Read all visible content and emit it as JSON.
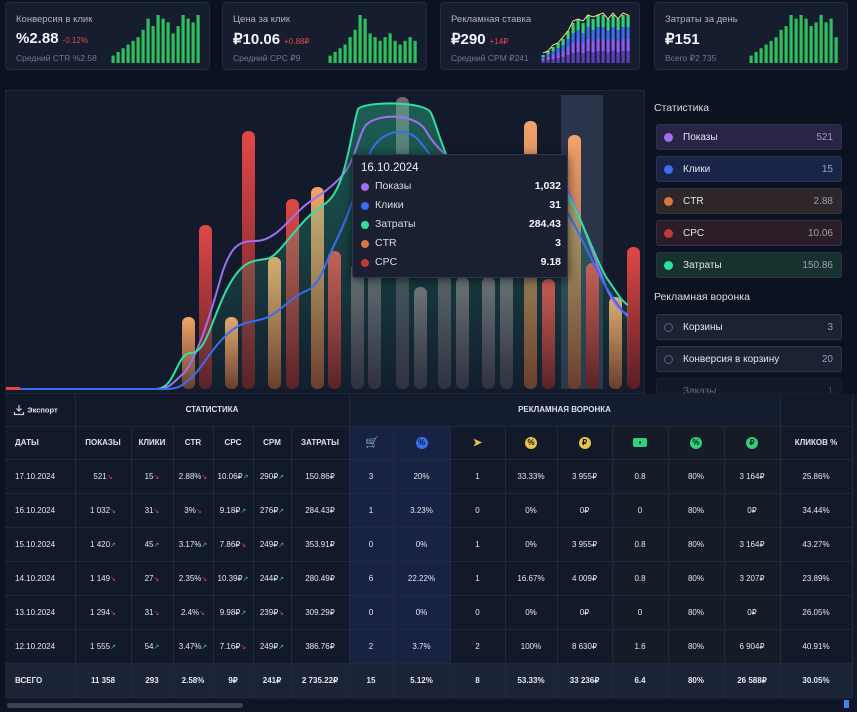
{
  "kpis": [
    {
      "title": "Конверсия в клик",
      "value": "%2.88",
      "delta": "-0.12%",
      "delta_color": "#e04a4a",
      "sub": "Средний CTR %2.58",
      "bars": [
        2,
        3,
        4,
        5,
        6,
        7,
        9,
        12,
        10,
        13,
        12,
        11,
        8,
        10,
        13,
        12,
        11,
        13
      ],
      "mixed": false
    },
    {
      "title": "Цена за клик",
      "value": "₽10.06",
      "delta": "+0.88₽",
      "delta_color": "#e04a4a",
      "sub": "Средний CPC ₽9",
      "bars": [
        2,
        3,
        4,
        5,
        7,
        9,
        13,
        12,
        8,
        7,
        6,
        7,
        8,
        6,
        5,
        6,
        7,
        6
      ],
      "mixed": false
    },
    {
      "title": "Рекламная ставка",
      "value": "₽290",
      "delta": "+14₽",
      "delta_color": "#e04a4a",
      "sub": "Средний CPM ₽241",
      "bars": [
        2,
        3,
        4,
        5,
        6,
        8,
        10,
        11,
        10,
        12,
        11,
        12,
        12,
        11,
        12,
        11,
        12,
        12
      ],
      "mixed": true
    },
    {
      "title": "Затраты за день",
      "value": "₽151",
      "delta": "",
      "delta_color": "#e04a4a",
      "sub": "Всего ₽2 735",
      "bars": [
        2,
        3,
        4,
        5,
        6,
        7,
        9,
        10,
        13,
        12,
        13,
        12,
        10,
        11,
        13,
        11,
        12,
        7
      ],
      "mixed": false
    }
  ],
  "tooltip": {
    "date": "16.10.2024",
    "rows": [
      {
        "label": "Показы",
        "value": "1,032",
        "color": "#9f6ff0"
      },
      {
        "label": "Клики",
        "value": "31",
        "color": "#3a6df0"
      },
      {
        "label": "Затраты",
        "value": "284.43",
        "color": "#2fe0a0"
      },
      {
        "label": "CTR",
        "value": "3",
        "color": "#d97740"
      },
      {
        "label": "CPC",
        "value": "9.18",
        "color": "#c03a3a"
      }
    ]
  },
  "side": {
    "stats_title": "Статистика",
    "legend": [
      {
        "label": "Показы",
        "value": "521",
        "color": "#9f6ff0",
        "bg": "#2a2446"
      },
      {
        "label": "Клики",
        "value": "15",
        "color": "#3a6df0",
        "bg": "#1a2448"
      },
      {
        "label": "CTR",
        "value": "2.88",
        "color": "#d97740",
        "bg": "#2e2628"
      },
      {
        "label": "CPC",
        "value": "10.06",
        "color": "#c03a3a",
        "bg": "#2c1e26"
      },
      {
        "label": "Затраты",
        "value": "150.86",
        "color": "#2fe0a0",
        "bg": "#17322e"
      }
    ],
    "funnel_title": "Рекламная воронка",
    "funnel": [
      {
        "label": "Корзины",
        "value": "3"
      },
      {
        "label": "Конверсия в корзину",
        "value": "20"
      },
      {
        "label": "Заказы",
        "value": "1"
      }
    ]
  },
  "table": {
    "export_label": "Экспорт",
    "group_stats": "СТАТИСТИКА",
    "group_funnel": "РЕКЛАМНАЯ ВОРОНКА",
    "headers": [
      "ДАТЫ",
      "ПОКАЗЫ",
      "КЛИКИ",
      "CTR",
      "CPC",
      "CPM",
      "ЗАТРАТЫ"
    ],
    "funnel_icons": [
      {
        "name": "cart-icon",
        "glyph": "🛒",
        "color": "#3a6df0"
      },
      {
        "name": "percent-icon",
        "glyph": "%",
        "color": "#3a6df0"
      },
      {
        "name": "send-icon",
        "glyph": "➤",
        "color": "#e6c34a"
      },
      {
        "name": "percent-icon",
        "glyph": "%",
        "color": "#e6c34a"
      },
      {
        "name": "ruble-icon",
        "glyph": "₽",
        "color": "#e6c34a"
      },
      {
        "name": "cash-icon",
        "glyph": "▬",
        "color": "#2fd27a"
      },
      {
        "name": "percent-icon",
        "glyph": "%",
        "color": "#2fd27a"
      },
      {
        "name": "ruble-icon",
        "glyph": "₽",
        "color": "#2fd27a"
      }
    ],
    "last_header": "КЛИКОВ %",
    "rows": [
      {
        "date": "17.10.2024",
        "shows": "521",
        "shows_t": "dn",
        "clicks": "15",
        "clicks_t": "dn",
        "ctr": "2.88%",
        "ctr_t": "dn",
        "cpc": "10.06₽",
        "cpc_t": "up",
        "cpm": "290₽",
        "cpm_t": "up",
        "cost": "150.86₽",
        "f": [
          "3",
          "20%",
          "1",
          "33.33%",
          "3 955₽",
          "0.8",
          "80%",
          "3 164₽"
        ],
        "last": "25.86%"
      },
      {
        "date": "16.10.2024",
        "shows": "1 032",
        "shows_t": "dn",
        "clicks": "31",
        "clicks_t": "dn",
        "ctr": "3%",
        "ctr_t": "dn",
        "cpc": "9.18₽",
        "cpc_t": "up",
        "cpm": "276₽",
        "cpm_t": "up",
        "cost": "284.43₽",
        "f": [
          "1",
          "3.23%",
          "0",
          "0%",
          "0₽",
          "0",
          "80%",
          "0₽"
        ],
        "last": "34.44%"
      },
      {
        "date": "15.10.2024",
        "shows": "1 420",
        "shows_t": "up",
        "clicks": "45",
        "clicks_t": "up",
        "ctr": "3.17%",
        "ctr_t": "up",
        "cpc": "7.86₽",
        "cpc_t": "dn",
        "cpm": "249₽",
        "cpm_t": "up",
        "cost": "353.91₽",
        "f": [
          "0",
          "0%",
          "1",
          "0%",
          "3 955₽",
          "0.8",
          "80%",
          "3 164₽"
        ],
        "last": "43.27%"
      },
      {
        "date": "14.10.2024",
        "shows": "1 149",
        "shows_t": "dn",
        "clicks": "27",
        "clicks_t": "dn",
        "ctr": "2.35%",
        "ctr_t": "dn",
        "cpc": "10.39₽",
        "cpc_t": "up",
        "cpm": "244₽",
        "cpm_t": "up",
        "cost": "280.49₽",
        "f": [
          "6",
          "22.22%",
          "1",
          "16.67%",
          "4 009₽",
          "0.8",
          "80%",
          "3 207₽"
        ],
        "last": "23.89%"
      },
      {
        "date": "13.10.2024",
        "shows": "1 294",
        "shows_t": "dn",
        "clicks": "31",
        "clicks_t": "dn",
        "ctr": "2.4%",
        "ctr_t": "dn",
        "cpc": "9.98₽",
        "cpc_t": "up",
        "cpm": "239₽",
        "cpm_t": "dn",
        "cost": "309.29₽",
        "f": [
          "0",
          "0%",
          "0",
          "0%",
          "0₽",
          "0",
          "80%",
          "0₽"
        ],
        "last": "26.05%"
      },
      {
        "date": "12.10.2024",
        "shows": "1 555",
        "shows_t": "up",
        "clicks": "54",
        "clicks_t": "up",
        "ctr": "3.47%",
        "ctr_t": "up",
        "cpc": "7.16₽",
        "cpc_t": "dn",
        "cpm": "249₽",
        "cpm_t": "up",
        "cost": "386.76₽",
        "f": [
          "2",
          "3.7%",
          "2",
          "100%",
          "8 630₽",
          "1.6",
          "80%",
          "6 904₽"
        ],
        "last": "40.91%"
      }
    ],
    "total": {
      "date": "ВСЕГО",
      "shows": "11 358",
      "clicks": "293",
      "ctr": "2.58%",
      "cpc": "9₽",
      "cpm": "241₽",
      "cost": "2 735.22₽",
      "f": [
        "15",
        "5.12%",
        "8",
        "53.33%",
        "33 236₽",
        "6.4",
        "80%",
        "26 588₽"
      ],
      "last": "30.05%"
    }
  }
}
